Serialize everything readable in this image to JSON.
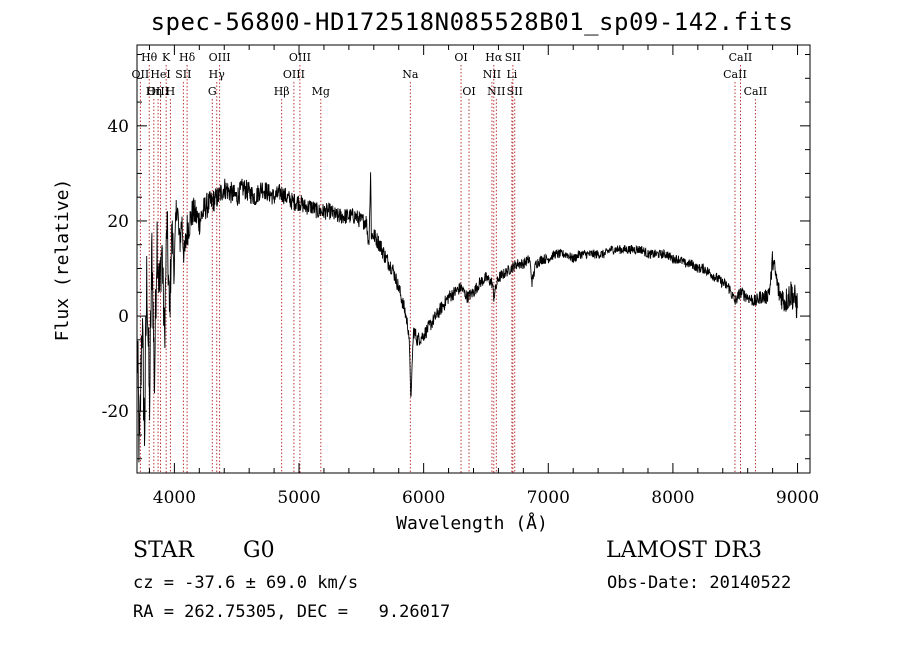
{
  "header": {
    "title": "spec-56800-HD172518N085528B01_sp09-142.fits"
  },
  "info": {
    "object_class": "STAR",
    "subclass": "G0",
    "survey": "LAMOST DR3",
    "cz": "cz = -37.6 ± 69.0 km/s",
    "obs_date": "Obs-Date: 20140522",
    "radec": "RA = 262.75305, DEC =   9.26017"
  },
  "colors": {
    "line_marker": "#b22222",
    "spectrum": "#000000"
  },
  "chart_data": {
    "type": "line",
    "title": "spec-56800-HD172518N085528B01_sp09-142.fits",
    "xlabel": "Wavelength (Å)",
    "ylabel": "Flux (relative)",
    "xlim": [
      3700,
      9100
    ],
    "ylim": [
      -33,
      57
    ],
    "xticks": [
      4000,
      5000,
      6000,
      7000,
      8000,
      9000
    ],
    "yticks": [
      -20,
      0,
      20,
      40
    ],
    "grid": false,
    "series": [
      {
        "x": [
          3700,
          3720,
          3740,
          3760,
          3780,
          3800,
          3820,
          3840,
          3860,
          3880,
          3900,
          3920,
          3940,
          3960,
          3980,
          4000,
          4020,
          4040,
          4060,
          4080,
          4100,
          4150,
          4200,
          4250,
          4300,
          4350,
          4400,
          4450,
          4500,
          4550,
          4600,
          4650,
          4700,
          4750,
          4800,
          4850,
          4900,
          4950,
          5000,
          5050,
          5100,
          5150,
          5200,
          5250,
          5300,
          5350,
          5400,
          5450,
          5500,
          5540,
          5560,
          5575,
          5580,
          5600,
          5650,
          5700,
          5750,
          5800,
          5850,
          5880,
          5900,
          5910,
          5920,
          5950,
          6000,
          6050,
          6100,
          6150,
          6200,
          6250,
          6300,
          6350,
          6400,
          6450,
          6500,
          6550,
          6563,
          6580,
          6600,
          6650,
          6700,
          6750,
          6800,
          6850,
          6870,
          6900,
          6950,
          7000,
          7050,
          7100,
          7150,
          7200,
          7250,
          7300,
          7350,
          7400,
          7450,
          7500,
          7550,
          7600,
          7650,
          7700,
          7750,
          7800,
          7850,
          7900,
          7950,
          8000,
          8050,
          8100,
          8150,
          8200,
          8250,
          8300,
          8350,
          8400,
          8450,
          8498,
          8542,
          8600,
          8662,
          8700,
          8750,
          8780,
          8800,
          8850,
          8900,
          8950,
          9000
        ],
        "values": [
          -5,
          -30,
          0,
          -25,
          10,
          -20,
          15,
          -15,
          18,
          5,
          15,
          -5,
          20,
          0,
          18,
          10,
          25,
          15,
          20,
          12,
          18,
          22,
          20,
          23,
          24,
          25,
          27,
          26,
          25,
          27,
          26,
          25,
          27,
          26,
          25,
          26,
          25,
          24,
          24,
          23,
          23,
          22,
          22,
          22,
          21,
          21,
          21,
          21,
          20,
          20,
          15,
          30,
          17,
          17,
          15,
          12,
          10,
          6,
          1,
          -3,
          -18,
          -8,
          -3,
          -5,
          -4,
          -2,
          0,
          2,
          4,
          5,
          6,
          4,
          5,
          7,
          8,
          7,
          4,
          6,
          8,
          9,
          10,
          11,
          11,
          12,
          7,
          11,
          12,
          12,
          13,
          13,
          13,
          12,
          13,
          13,
          13,
          13,
          13,
          14,
          14,
          14,
          14,
          14,
          14,
          13,
          13,
          13,
          13,
          12,
          12,
          11,
          11,
          10,
          10,
          9,
          8,
          7,
          6,
          3,
          5,
          4,
          3,
          4,
          4,
          6,
          12,
          5,
          3,
          5,
          2
        ],
        "noise": [
          6,
          6,
          5,
          6,
          6,
          5,
          5,
          5,
          5,
          4,
          4,
          4,
          4,
          4,
          3,
          3,
          3,
          2.5,
          2.5,
          2.5,
          2.5,
          2,
          2,
          1.8,
          1.6,
          1.5,
          1.5,
          1.5,
          1.4,
          1.4,
          1.4,
          1.3,
          1.3,
          1.3,
          1.2,
          1.2,
          1.2,
          1.2,
          1.2,
          1.1,
          1.1,
          1.1,
          1.1,
          1.1,
          1.1,
          1.1,
          1.1,
          1.1,
          1.1,
          1.1,
          1.1,
          1.1,
          1.1,
          1.1,
          1.1,
          1.1,
          1.0,
          1.0,
          1.0,
          1.0,
          1.0,
          1.0,
          1.0,
          1.0,
          0.9,
          0.9,
          0.9,
          0.9,
          0.9,
          0.9,
          0.8,
          0.8,
          0.8,
          0.8,
          0.8,
          0.8,
          0.8,
          0.8,
          0.8,
          0.7,
          0.7,
          0.7,
          0.7,
          0.7,
          0.7,
          0.7,
          0.7,
          0.6,
          0.6,
          0.6,
          0.6,
          0.6,
          0.6,
          0.6,
          0.6,
          0.6,
          0.6,
          0.6,
          0.6,
          0.6,
          0.6,
          0.6,
          0.6,
          0.6,
          0.6,
          0.6,
          0.6,
          0.6,
          0.6,
          0.6,
          0.6,
          0.6,
          0.7,
          0.7,
          0.7,
          0.7,
          0.8,
          0.8,
          0.8,
          0.8,
          0.9,
          0.9,
          1.0,
          1.2,
          1.4,
          1.6,
          1.8,
          2.0,
          2.2
        ]
      }
    ],
    "lines": [
      {
        "label": "Hθ",
        "wave": 3798,
        "row": 0
      },
      {
        "label": "K",
        "wave": 3934,
        "row": 0
      },
      {
        "label": "Hδ",
        "wave": 4102,
        "row": 0
      },
      {
        "label": "OIII",
        "wave": 4363,
        "row": 0
      },
      {
        "label": "OIII",
        "wave": 5007,
        "row": 0
      },
      {
        "label": "OI",
        "wave": 6300,
        "row": 0
      },
      {
        "label": "Hα",
        "wave": 6563,
        "row": 0
      },
      {
        "label": "SII",
        "wave": 6716,
        "row": 0
      },
      {
        "label": "CaII",
        "wave": 8542,
        "row": 0
      },
      {
        "label": "OII",
        "wave": 3727,
        "row": 1
      },
      {
        "label": "HeI",
        "wave": 3889,
        "row": 1
      },
      {
        "label": "SII",
        "wave": 4072,
        "row": 1
      },
      {
        "label": "Hγ",
        "wave": 4340,
        "row": 1
      },
      {
        "label": "OIII",
        "wave": 4959,
        "row": 1
      },
      {
        "label": "Na",
        "wave": 5893,
        "row": 1
      },
      {
        "label": "NII",
        "wave": 6548,
        "row": 1
      },
      {
        "label": "Li",
        "wave": 6708,
        "row": 1
      },
      {
        "label": "CaII",
        "wave": 8498,
        "row": 1
      },
      {
        "label": "OIII",
        "wave": 3869,
        "row": 2
      },
      {
        "label": "Hη",
        "wave": 3835,
        "row": 2
      },
      {
        "label": "H",
        "wave": 3968,
        "row": 2
      },
      {
        "label": "G",
        "wave": 4304,
        "row": 2
      },
      {
        "label": "Hβ",
        "wave": 4861,
        "row": 2
      },
      {
        "label": "Mg",
        "wave": 5175,
        "row": 2
      },
      {
        "label": "OI",
        "wave": 6364,
        "row": 2
      },
      {
        "label": "NII",
        "wave": 6583,
        "row": 2
      },
      {
        "label": "SII",
        "wave": 6731,
        "row": 2
      },
      {
        "label": "CaII",
        "wave": 8662,
        "row": 2
      }
    ]
  }
}
